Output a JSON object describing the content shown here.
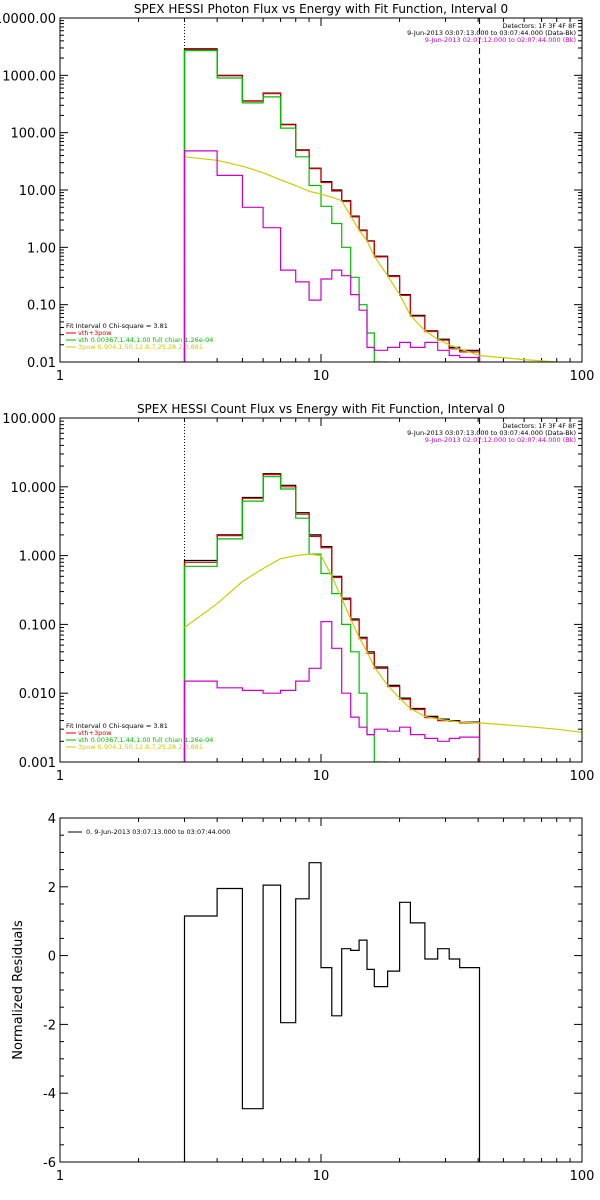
{
  "chart_data": [
    {
      "type": "line",
      "title": "SPEX HESSI Photon Flux vs Energy with Fit Function, Interval 0",
      "xlabel": "",
      "ylabel": "",
      "xscale": "log",
      "yscale": "log",
      "xlim": [
        1,
        100
      ],
      "ylim": [
        0.01,
        10000
      ],
      "xticks": [
        {
          "v": 1,
          "label": "1"
        },
        {
          "v": 10,
          "label": "10"
        },
        {
          "v": 100,
          "label": "100"
        }
      ],
      "yticks": [
        {
          "v": 0.01,
          "label": "0.01"
        },
        {
          "v": 0.1,
          "label": "0.10"
        },
        {
          "v": 1,
          "label": "1.00"
        },
        {
          "v": 10,
          "label": "10.00"
        },
        {
          "v": 100,
          "label": "100.00"
        },
        {
          "v": 1000,
          "label": "1000.00"
        },
        {
          "v": 10000,
          "label": "10000.00"
        }
      ],
      "vlines": [
        {
          "x": 3,
          "style": "dotted"
        },
        {
          "x": 40.5,
          "style": "dashed"
        }
      ],
      "legend_top_right": [
        {
          "text": "Detectors: 1F 3F 4F 8F",
          "color": "#000000"
        },
        {
          "text": "9-Jun-2013 03:07:13.000 to 03:07:44.000 (Data-Bk)",
          "color": "#000000"
        },
        {
          "text": "9-Jun-2013 02:07:12.000 to 02:07:44.000 (Bk)",
          "color": "#cc00cc"
        }
      ],
      "legend_bottom_left": [
        {
          "text": "Fit Interval 0   Chi-square = 3.81",
          "color": "#000000"
        },
        {
          "text": "vth+3pow",
          "color": "#dd0000"
        },
        {
          "text": "vth 0.00367,1.44,1.00  full chian 1.26e-04",
          "color": "#00bb00"
        },
        {
          "text": "3pow 0.904,1.50,12.8,7.25,28.2,0.881",
          "color": "#cccc00"
        }
      ],
      "edges": [
        3,
        4,
        5,
        6,
        7,
        8,
        9,
        10,
        11,
        12,
        13,
        14,
        15,
        16,
        18,
        20,
        22,
        25,
        28,
        31,
        34,
        40.5
      ],
      "series": [
        {
          "style": "step",
          "color": "#000000",
          "values": [
            2900,
            1000,
            360,
            490,
            140,
            50,
            24,
            14,
            10,
            6.5,
            3.5,
            2.0,
            1.3,
            0.7,
            0.32,
            0.15,
            0.065,
            0.035,
            0.025,
            0.018,
            0.016
          ]
        },
        {
          "style": "step",
          "color": "#dd0000",
          "values": [
            2800,
            980,
            355,
            480,
            137,
            49,
            23.5,
            13.5,
            9.6,
            6.3,
            3.4,
            1.95,
            1.28,
            0.68,
            0.31,
            0.145,
            0.063,
            0.034,
            0.024,
            0.017,
            0.015
          ]
        },
        {
          "style": "step",
          "color": "#00bb00",
          "values": [
            2700,
            900,
            330,
            420,
            120,
            38,
            12.0,
            5.2,
            2.6,
            1.0,
            0.3,
            0.1,
            0.032,
            0.009
          ]
        },
        {
          "style": "line",
          "color": "#cccc00",
          "x": [
            3,
            4,
            5,
            6,
            7,
            8,
            9,
            10,
            11,
            12,
            13,
            14,
            15,
            16,
            18,
            20,
            22,
            25,
            28,
            31,
            34,
            40.5,
            60,
            80,
            100
          ],
          "values": [
            38,
            33,
            26,
            20,
            15,
            12,
            9.5,
            8.5,
            7.5,
            6.5,
            3.5,
            2.0,
            1.3,
            0.7,
            0.32,
            0.15,
            0.065,
            0.035,
            0.025,
            0.02,
            0.017,
            0.013,
            0.011,
            0.01,
            0.0095
          ]
        },
        {
          "style": "step",
          "color": "#cc00cc",
          "values": [
            48,
            18,
            5.0,
            2.2,
            0.4,
            0.25,
            0.12,
            0.28,
            0.4,
            0.32,
            0.15,
            0.08,
            0.018,
            0.016,
            0.018,
            0.022,
            0.018,
            0.022,
            0.016,
            0.013,
            0.012
          ]
        }
      ]
    },
    {
      "type": "line",
      "title": "SPEX HESSI Count Flux vs Energy with Fit Function, Interval 0",
      "xlabel": "",
      "ylabel": "",
      "xscale": "log",
      "yscale": "log",
      "xlim": [
        1,
        100
      ],
      "ylim": [
        0.001,
        100
      ],
      "xticks": [
        {
          "v": 1,
          "label": "1"
        },
        {
          "v": 10,
          "label": "10"
        },
        {
          "v": 100,
          "label": "100"
        }
      ],
      "yticks": [
        {
          "v": 0.001,
          "label": "0.001"
        },
        {
          "v": 0.01,
          "label": "0.010"
        },
        {
          "v": 0.1,
          "label": "0.100"
        },
        {
          "v": 1,
          "label": "1.000"
        },
        {
          "v": 10,
          "label": "10.000"
        },
        {
          "v": 100,
          "label": "100.000"
        }
      ],
      "vlines": [
        {
          "x": 3,
          "style": "dotted"
        },
        {
          "x": 40.5,
          "style": "dashed"
        }
      ],
      "legend_top_right": [
        {
          "text": "Detectors: 1F 3F 4F 8F",
          "color": "#000000"
        },
        {
          "text": "9-Jun-2013 03:07:13.000 to 03:07:44.000 (Data-Bk)",
          "color": "#000000"
        },
        {
          "text": "9-Jun-2013 02:07:12.000 to 02:07:44.000 (Bk)",
          "color": "#cc00cc"
        }
      ],
      "legend_bottom_left": [
        {
          "text": "Fit Interval 0   Chi-square = 3.81",
          "color": "#000000"
        },
        {
          "text": "vth+3pow",
          "color": "#dd0000"
        },
        {
          "text": "vth 0.00367,1.44,1.00  full chian 1.26e-04",
          "color": "#00bb00"
        },
        {
          "text": "3pow 0.904,1.50,12.8,7.25,28.2,0.881",
          "color": "#cccc00"
        }
      ],
      "edges": [
        3,
        4,
        5,
        6,
        7,
        8,
        9,
        10,
        11,
        12,
        13,
        14,
        15,
        16,
        18,
        20,
        22,
        25,
        28,
        31,
        34,
        40.5
      ],
      "series": [
        {
          "style": "step",
          "color": "#000000",
          "values": [
            0.85,
            2.0,
            7.0,
            15.5,
            10.5,
            4.2,
            2.0,
            1.35,
            0.5,
            0.24,
            0.12,
            0.065,
            0.04,
            0.024,
            0.013,
            0.0085,
            0.006,
            0.0046,
            0.0042,
            0.004,
            0.0038
          ]
        },
        {
          "style": "step",
          "color": "#dd0000",
          "values": [
            0.8,
            1.95,
            6.8,
            15.0,
            10.0,
            4.0,
            1.9,
            1.3,
            0.48,
            0.23,
            0.115,
            0.062,
            0.038,
            0.023,
            0.0125,
            0.0082,
            0.0058,
            0.0044,
            0.004,
            0.0039,
            0.0037
          ]
        },
        {
          "style": "step",
          "color": "#00bb00",
          "values": [
            0.7,
            1.75,
            6.2,
            14.0,
            9.3,
            3.5,
            1.05,
            0.55,
            0.28,
            0.1,
            0.04,
            0.01,
            0.0025,
            0.0009
          ]
        },
        {
          "style": "line",
          "color": "#cccc00",
          "x": [
            3,
            4,
            5,
            6,
            7,
            8,
            9,
            10,
            11,
            12,
            13,
            14,
            15,
            16,
            18,
            20,
            22,
            25,
            28,
            31,
            34,
            40.5,
            60,
            80,
            100
          ],
          "values": [
            0.09,
            0.2,
            0.42,
            0.65,
            0.9,
            1.0,
            1.05,
            1.0,
            0.5,
            0.24,
            0.12,
            0.065,
            0.04,
            0.024,
            0.013,
            0.0085,
            0.006,
            0.0046,
            0.0042,
            0.004,
            0.0038,
            0.0037,
            0.0033,
            0.003,
            0.0027
          ]
        },
        {
          "style": "step",
          "color": "#cc00cc",
          "values": [
            0.015,
            0.012,
            0.011,
            0.01,
            0.011,
            0.015,
            0.023,
            0.11,
            0.045,
            0.01,
            0.0045,
            0.0032,
            0.0025,
            0.003,
            0.0028,
            0.0032,
            0.0025,
            0.0022,
            0.002,
            0.0022,
            0.0023
          ]
        }
      ]
    },
    {
      "type": "line",
      "title": "",
      "xlabel": "",
      "ylabel": "Normalized Residuals",
      "xscale": "log",
      "yscale": "linear",
      "xlim": [
        1,
        100
      ],
      "ylim": [
        -6,
        4
      ],
      "xticks": [
        {
          "v": 1,
          "label": "1"
        },
        {
          "v": 10,
          "label": "10"
        },
        {
          "v": 100,
          "label": "100"
        }
      ],
      "yticks": [
        {
          "v": -6,
          "label": "-6"
        },
        {
          "v": -4,
          "label": "-4"
        },
        {
          "v": -2,
          "label": "-2"
        },
        {
          "v": 0,
          "label": "0"
        },
        {
          "v": 2,
          "label": "2"
        },
        {
          "v": 4,
          "label": "4"
        }
      ],
      "vlines": [],
      "legend_top_right": [],
      "legend_bottom_left": [],
      "legend_top_left": [
        {
          "text": "0. 9-Jun-2013 03:07:13.000 to 03:07:44.000",
          "color": "#000000",
          "line": true
        }
      ],
      "edges": [
        3,
        4,
        5,
        6,
        7,
        8,
        9,
        10,
        11,
        12,
        13,
        14,
        15,
        16,
        18,
        20,
        22,
        25,
        28,
        31,
        34,
        40.5
      ],
      "series": [
        {
          "style": "step",
          "color": "#000000",
          "drop_ends": true,
          "values": [
            1.15,
            1.95,
            -4.45,
            2.05,
            -1.95,
            1.65,
            2.7,
            -0.35,
            -1.75,
            0.2,
            0.15,
            0.45,
            -0.4,
            -0.9,
            -0.45,
            1.55,
            0.95,
            -0.1,
            0.2,
            -0.1,
            -0.35
          ]
        }
      ]
    }
  ]
}
